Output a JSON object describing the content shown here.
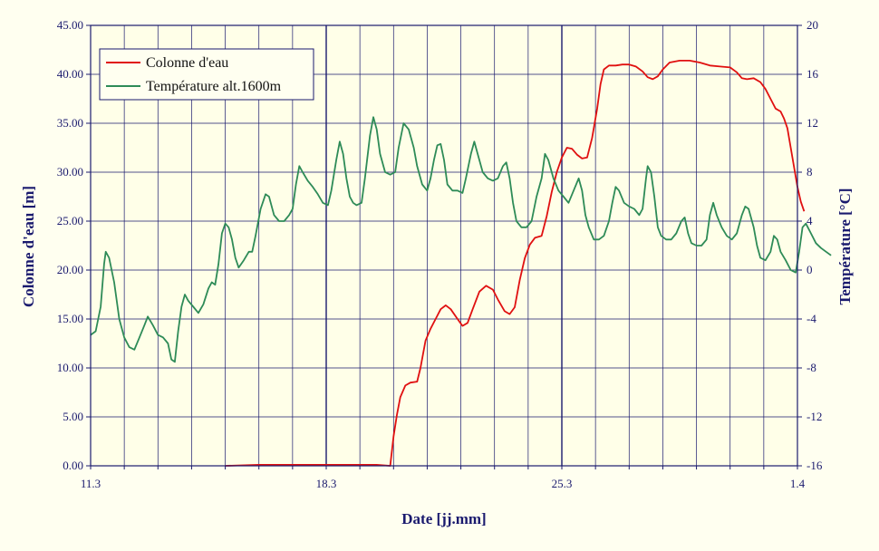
{
  "chart_data": {
    "type": "line",
    "xlabel": "Date [jj.mm]",
    "ylabel": "Colonne d'eau [m]",
    "y2label": "Température [°C]",
    "x_tick_labels": [
      "11.3",
      "18.3",
      "25.3",
      "1.4"
    ],
    "x_range_days": [
      0,
      21
    ],
    "ylim": [
      0,
      45
    ],
    "y_ticks": [
      "0.00",
      "5.00",
      "10.00",
      "15.00",
      "20.00",
      "25.00",
      "30.00",
      "35.00",
      "40.00",
      "45.00"
    ],
    "y2lim": [
      -16,
      20
    ],
    "y2_ticks": [
      "-16",
      "-12",
      "-8",
      "-4",
      "0",
      "4",
      "8",
      "12",
      "16",
      "20"
    ],
    "grid": true,
    "legend": "top-left",
    "series": [
      {
        "name": "Colonne d'eau",
        "axis": "left",
        "color": "#e01010",
        "points": [
          [
            4.0,
            0
          ],
          [
            5.0,
            0.1
          ],
          [
            6.0,
            0.1
          ],
          [
            7.0,
            0.1
          ],
          [
            8.0,
            0.1
          ],
          [
            8.5,
            0.1
          ],
          [
            8.9,
            0
          ],
          [
            9.0,
            3.0
          ],
          [
            9.1,
            5.2
          ],
          [
            9.2,
            7.0
          ],
          [
            9.35,
            8.2
          ],
          [
            9.5,
            8.5
          ],
          [
            9.7,
            8.6
          ],
          [
            9.8,
            10.0
          ],
          [
            9.95,
            12.8
          ],
          [
            10.1,
            14.0
          ],
          [
            10.25,
            15.0
          ],
          [
            10.4,
            16.0
          ],
          [
            10.55,
            16.4
          ],
          [
            10.7,
            16.0
          ],
          [
            10.9,
            15.0
          ],
          [
            11.05,
            14.3
          ],
          [
            11.2,
            14.6
          ],
          [
            11.35,
            16.0
          ],
          [
            11.55,
            17.8
          ],
          [
            11.75,
            18.4
          ],
          [
            11.95,
            18.0
          ],
          [
            12.1,
            17.0
          ],
          [
            12.3,
            15.8
          ],
          [
            12.45,
            15.5
          ],
          [
            12.6,
            16.2
          ],
          [
            12.75,
            19.0
          ],
          [
            12.9,
            21.2
          ],
          [
            13.05,
            22.6
          ],
          [
            13.2,
            23.3
          ],
          [
            13.4,
            23.5
          ],
          [
            13.55,
            25.5
          ],
          [
            13.7,
            28.0
          ],
          [
            13.85,
            30.0
          ],
          [
            14.0,
            31.5
          ],
          [
            14.15,
            32.5
          ],
          [
            14.3,
            32.4
          ],
          [
            14.45,
            31.8
          ],
          [
            14.6,
            31.4
          ],
          [
            14.75,
            31.5
          ],
          [
            14.9,
            33.5
          ],
          [
            15.05,
            36.5
          ],
          [
            15.15,
            39.0
          ],
          [
            15.25,
            40.5
          ],
          [
            15.4,
            40.9
          ],
          [
            15.6,
            40.9
          ],
          [
            15.8,
            41.0
          ],
          [
            16.0,
            41.0
          ],
          [
            16.2,
            40.8
          ],
          [
            16.4,
            40.3
          ],
          [
            16.55,
            39.7
          ],
          [
            16.7,
            39.5
          ],
          [
            16.85,
            39.8
          ],
          [
            17.0,
            40.5
          ],
          [
            17.2,
            41.2
          ],
          [
            17.5,
            41.4
          ],
          [
            17.8,
            41.4
          ],
          [
            18.1,
            41.2
          ],
          [
            18.4,
            40.9
          ],
          [
            18.7,
            40.8
          ],
          [
            19.0,
            40.7
          ],
          [
            19.2,
            40.2
          ],
          [
            19.35,
            39.6
          ],
          [
            19.5,
            39.5
          ],
          [
            19.7,
            39.6
          ],
          [
            19.9,
            39.2
          ],
          [
            20.05,
            38.5
          ],
          [
            20.2,
            37.5
          ],
          [
            20.35,
            36.5
          ],
          [
            20.5,
            36.2
          ],
          [
            20.6,
            35.5
          ],
          [
            20.7,
            34.5
          ],
          [
            20.8,
            32.5
          ],
          [
            20.9,
            30.5
          ],
          [
            21.0,
            28.5
          ],
          [
            21.1,
            27.0
          ],
          [
            21.2,
            26.0
          ]
        ]
      },
      {
        "name": "Température alt.1600m",
        "axis": "right",
        "color": "#2e8b57",
        "points": [
          [
            0.0,
            -5.3
          ],
          [
            0.15,
            -5.0
          ],
          [
            0.3,
            -3.0
          ],
          [
            0.4,
            0.5
          ],
          [
            0.45,
            1.5
          ],
          [
            0.55,
            1.0
          ],
          [
            0.7,
            -1.0
          ],
          [
            0.85,
            -4.0
          ],
          [
            1.0,
            -5.5
          ],
          [
            1.15,
            -6.3
          ],
          [
            1.3,
            -6.5
          ],
          [
            1.45,
            -5.5
          ],
          [
            1.6,
            -4.5
          ],
          [
            1.7,
            -3.8
          ],
          [
            1.85,
            -4.5
          ],
          [
            2.0,
            -5.3
          ],
          [
            2.15,
            -5.5
          ],
          [
            2.3,
            -6.0
          ],
          [
            2.4,
            -7.3
          ],
          [
            2.5,
            -7.5
          ],
          [
            2.6,
            -5.0
          ],
          [
            2.7,
            -3.0
          ],
          [
            2.8,
            -2.0
          ],
          [
            2.9,
            -2.5
          ],
          [
            3.05,
            -3.0
          ],
          [
            3.2,
            -3.5
          ],
          [
            3.35,
            -2.8
          ],
          [
            3.5,
            -1.5
          ],
          [
            3.6,
            -1.0
          ],
          [
            3.7,
            -1.2
          ],
          [
            3.8,
            0.5
          ],
          [
            3.9,
            3.0
          ],
          [
            4.0,
            3.8
          ],
          [
            4.1,
            3.5
          ],
          [
            4.2,
            2.5
          ],
          [
            4.3,
            1.0
          ],
          [
            4.4,
            0.2
          ],
          [
            4.55,
            0.8
          ],
          [
            4.7,
            1.5
          ],
          [
            4.8,
            1.5
          ],
          [
            4.9,
            2.8
          ],
          [
            5.05,
            5.0
          ],
          [
            5.2,
            6.2
          ],
          [
            5.3,
            6.0
          ],
          [
            5.45,
            4.5
          ],
          [
            5.6,
            4.0
          ],
          [
            5.75,
            4.0
          ],
          [
            5.9,
            4.5
          ],
          [
            6.0,
            5.0
          ],
          [
            6.1,
            7.0
          ],
          [
            6.2,
            8.5
          ],
          [
            6.3,
            8.0
          ],
          [
            6.45,
            7.3
          ],
          [
            6.6,
            6.8
          ],
          [
            6.75,
            6.2
          ],
          [
            6.9,
            5.5
          ],
          [
            7.05,
            5.3
          ],
          [
            7.15,
            6.5
          ],
          [
            7.3,
            9.0
          ],
          [
            7.4,
            10.5
          ],
          [
            7.5,
            9.5
          ],
          [
            7.6,
            7.5
          ],
          [
            7.7,
            6.0
          ],
          [
            7.8,
            5.5
          ],
          [
            7.9,
            5.3
          ],
          [
            8.05,
            5.5
          ],
          [
            8.15,
            7.5
          ],
          [
            8.3,
            11.0
          ],
          [
            8.4,
            12.5
          ],
          [
            8.5,
            11.5
          ],
          [
            8.6,
            9.5
          ],
          [
            8.75,
            8.0
          ],
          [
            8.9,
            7.8
          ],
          [
            9.05,
            8.0
          ],
          [
            9.15,
            10.0
          ],
          [
            9.3,
            12.0
          ],
          [
            9.45,
            11.5
          ],
          [
            9.6,
            10.0
          ],
          [
            9.7,
            8.5
          ],
          [
            9.85,
            7.0
          ],
          [
            10.0,
            6.5
          ],
          [
            10.1,
            7.5
          ],
          [
            10.2,
            9.0
          ],
          [
            10.3,
            10.2
          ],
          [
            10.4,
            10.3
          ],
          [
            10.5,
            9.0
          ],
          [
            10.6,
            7.0
          ],
          [
            10.75,
            6.5
          ],
          [
            10.9,
            6.5
          ],
          [
            11.05,
            6.3
          ],
          [
            11.15,
            7.5
          ],
          [
            11.3,
            9.5
          ],
          [
            11.4,
            10.5
          ],
          [
            11.5,
            9.5
          ],
          [
            11.65,
            8.0
          ],
          [
            11.8,
            7.5
          ],
          [
            11.95,
            7.3
          ],
          [
            12.1,
            7.5
          ],
          [
            12.25,
            8.5
          ],
          [
            12.35,
            8.8
          ],
          [
            12.45,
            7.5
          ],
          [
            12.55,
            5.5
          ],
          [
            12.65,
            4.0
          ],
          [
            12.8,
            3.5
          ],
          [
            12.95,
            3.5
          ],
          [
            13.1,
            4.0
          ],
          [
            13.25,
            6.0
          ],
          [
            13.4,
            7.5
          ],
          [
            13.5,
            9.5
          ],
          [
            13.6,
            9.0
          ],
          [
            13.75,
            7.5
          ],
          [
            13.9,
            6.5
          ],
          [
            14.05,
            6.0
          ],
          [
            14.2,
            5.5
          ],
          [
            14.35,
            6.5
          ],
          [
            14.5,
            7.5
          ],
          [
            14.6,
            6.5
          ],
          [
            14.7,
            4.5
          ],
          [
            14.8,
            3.5
          ],
          [
            14.95,
            2.5
          ],
          [
            15.1,
            2.5
          ],
          [
            15.25,
            2.8
          ],
          [
            15.4,
            4.0
          ],
          [
            15.5,
            5.5
          ],
          [
            15.6,
            6.8
          ],
          [
            15.7,
            6.5
          ],
          [
            15.85,
            5.5
          ],
          [
            16.0,
            5.2
          ],
          [
            16.15,
            5.0
          ],
          [
            16.3,
            4.5
          ],
          [
            16.4,
            5.0
          ],
          [
            16.5,
            7.5
          ],
          [
            16.55,
            8.5
          ],
          [
            16.65,
            8.0
          ],
          [
            16.75,
            6.0
          ],
          [
            16.85,
            3.5
          ],
          [
            16.95,
            2.8
          ],
          [
            17.1,
            2.5
          ],
          [
            17.25,
            2.5
          ],
          [
            17.4,
            3.0
          ],
          [
            17.55,
            4.0
          ],
          [
            17.65,
            4.3
          ],
          [
            17.75,
            3.0
          ],
          [
            17.85,
            2.2
          ],
          [
            18.0,
            2.0
          ],
          [
            18.15,
            2.0
          ],
          [
            18.3,
            2.5
          ],
          [
            18.4,
            4.5
          ],
          [
            18.5,
            5.5
          ],
          [
            18.6,
            4.5
          ],
          [
            18.75,
            3.5
          ],
          [
            18.9,
            2.8
          ],
          [
            19.05,
            2.5
          ],
          [
            19.2,
            3.0
          ],
          [
            19.35,
            4.5
          ],
          [
            19.45,
            5.2
          ],
          [
            19.55,
            5.0
          ],
          [
            19.7,
            3.5
          ],
          [
            19.8,
            2.0
          ],
          [
            19.9,
            1.0
          ],
          [
            20.05,
            0.8
          ],
          [
            20.2,
            1.5
          ],
          [
            20.3,
            2.8
          ],
          [
            20.4,
            2.5
          ],
          [
            20.5,
            1.5
          ],
          [
            20.65,
            0.8
          ],
          [
            20.8,
            0.0
          ],
          [
            20.95,
            -0.2
          ],
          [
            21.05,
            1.5
          ],
          [
            21.15,
            3.5
          ],
          [
            21.25,
            3.8
          ],
          [
            21.4,
            3.0
          ],
          [
            21.55,
            2.2
          ],
          [
            21.7,
            1.8
          ],
          [
            21.85,
            1.5
          ],
          [
            22.0,
            1.2
          ]
        ]
      }
    ]
  }
}
